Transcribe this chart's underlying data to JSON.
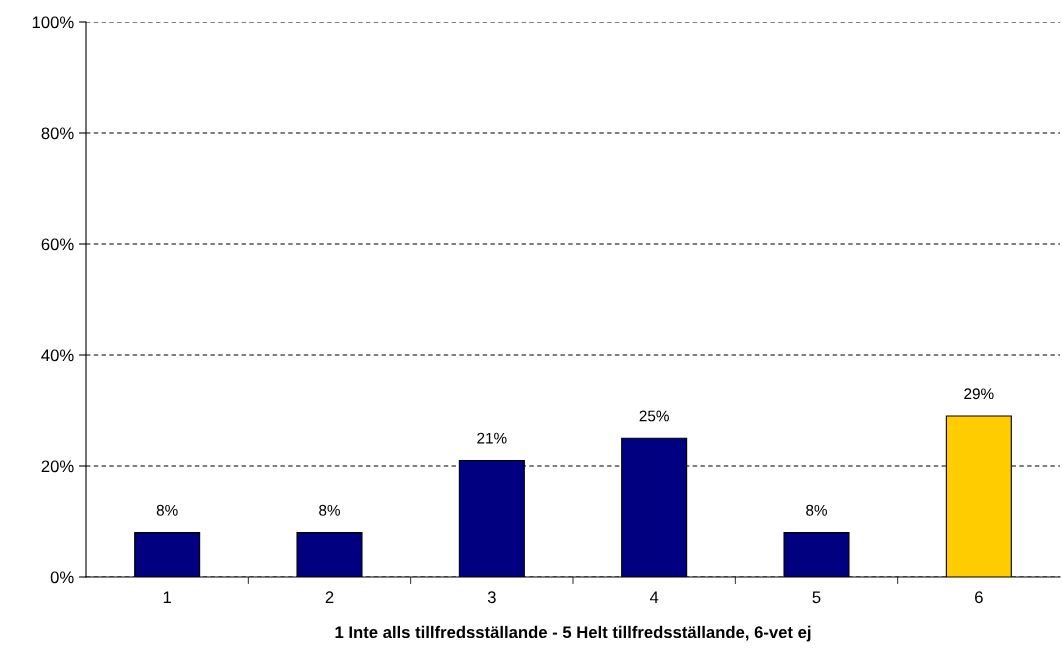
{
  "chart_data": {
    "type": "bar",
    "xlabel": "1 Inte alls tillfredsställande - 5 Helt tillfredsställande, 6-vet ej",
    "categories": [
      "1",
      "2",
      "3",
      "4",
      "5",
      "6"
    ],
    "values": [
      8,
      8,
      21,
      25,
      8,
      29
    ],
    "colors": [
      "#000080",
      "#000080",
      "#000080",
      "#000080",
      "#000080",
      "#ffcc00"
    ],
    "value_labels": [
      "8%",
      "8%",
      "21%",
      "25%",
      "8%",
      "29%"
    ],
    "ylim": [
      0,
      100
    ],
    "yticks": [
      {
        "value": 0,
        "label": "0%"
      },
      {
        "value": 20,
        "label": "20%"
      },
      {
        "value": 40,
        "label": "40%"
      },
      {
        "value": 60,
        "label": "60%"
      },
      {
        "value": 80,
        "label": "80%"
      },
      {
        "value": 100,
        "label": "100%"
      }
    ],
    "grid": "y",
    "line_style": "dashed"
  }
}
